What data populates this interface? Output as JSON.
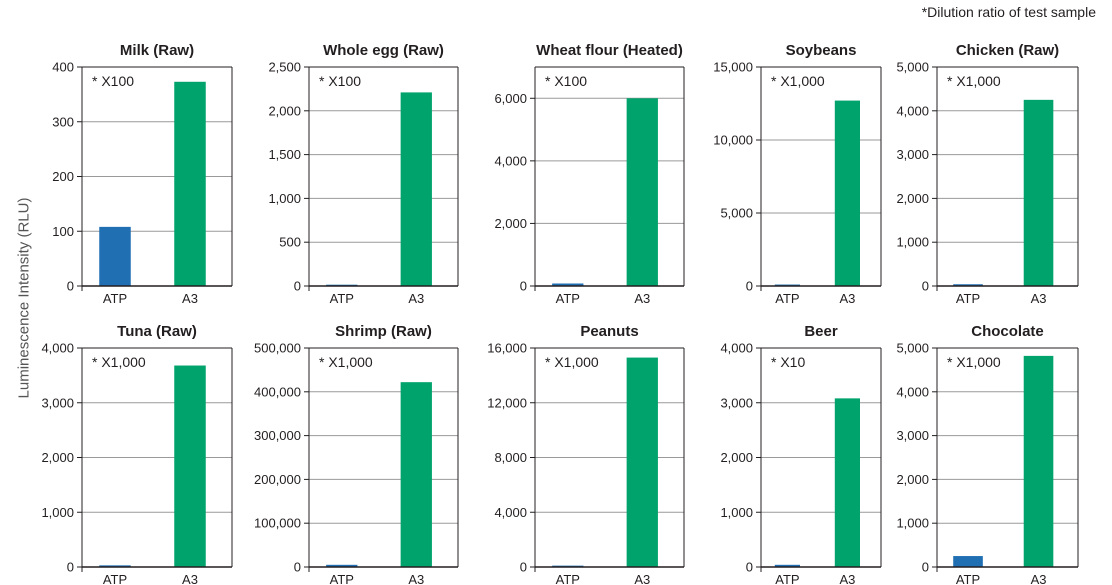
{
  "note": "*Dilution ratio of test sample",
  "ylabel": "Luminescence Intensity (RLU)",
  "colors": {
    "ATP": "#1f6fb2",
    "A3": "#00a36c",
    "grid": "#9a9a9a",
    "frame": "#231f20"
  },
  "chart_data": [
    {
      "type": "bar",
      "title": "Milk (Raw)",
      "dilution": "* X100",
      "categories": [
        "ATP",
        "A3"
      ],
      "values": [
        108,
        373
      ],
      "ylim": [
        0,
        400
      ],
      "yticks": [
        0,
        100,
        200,
        300,
        400
      ],
      "tick_labels": [
        "0",
        "100",
        "200",
        "300",
        "400"
      ]
    },
    {
      "type": "bar",
      "title": "Whole egg (Raw)",
      "dilution": "* X100",
      "categories": [
        "ATP",
        "A3"
      ],
      "values": [
        15,
        2210
      ],
      "ylim": [
        0,
        2500
      ],
      "yticks": [
        0,
        500,
        1000,
        1500,
        2000,
        2500
      ],
      "tick_labels": [
        "0",
        "500",
        "1,000",
        "1,500",
        "2,000",
        "2,500"
      ]
    },
    {
      "type": "bar",
      "title": "Wheat flour (Heated)",
      "dilution": "* X100",
      "categories": [
        "ATP",
        "A3"
      ],
      "values": [
        80,
        6000
      ],
      "ylim": [
        0,
        7000
      ],
      "yticks": [
        0,
        2000,
        4000,
        6000
      ],
      "tick_labels": [
        "0",
        "2,000",
        "4,000",
        "6,000"
      ]
    },
    {
      "type": "bar",
      "title": "Soybeans",
      "dilution": "* X1,000",
      "categories": [
        "ATP",
        "A3"
      ],
      "values": [
        100,
        12700
      ],
      "ylim": [
        0,
        15000
      ],
      "yticks": [
        0,
        5000,
        10000,
        15000
      ],
      "tick_labels": [
        "0",
        "5,000",
        "10,000",
        "15,000"
      ]
    },
    {
      "type": "bar",
      "title": "Chicken (Raw)",
      "dilution": "* X1,000",
      "categories": [
        "ATP",
        "A3"
      ],
      "values": [
        40,
        4250
      ],
      "ylim": [
        0,
        5000
      ],
      "yticks": [
        0,
        1000,
        2000,
        3000,
        4000,
        5000
      ],
      "tick_labels": [
        "0",
        "1,000",
        "2,000",
        "3,000",
        "4,000",
        "5,000"
      ]
    },
    {
      "type": "bar",
      "title": "Tuna (Raw)",
      "dilution": "* X1,000",
      "categories": [
        "ATP",
        "A3"
      ],
      "values": [
        30,
        3680
      ],
      "ylim": [
        0,
        4000
      ],
      "yticks": [
        0,
        1000,
        2000,
        3000,
        4000
      ],
      "tick_labels": [
        "0",
        "1,000",
        "2,000",
        "3,000",
        "4,000"
      ]
    },
    {
      "type": "bar",
      "title": "Shrimp (Raw)",
      "dilution": "* X1,000",
      "categories": [
        "ATP",
        "A3"
      ],
      "values": [
        5000,
        422000
      ],
      "ylim": [
        0,
        500000
      ],
      "yticks": [
        0,
        100000,
        200000,
        300000,
        400000,
        500000
      ],
      "tick_labels": [
        "0",
        "100,000",
        "200,000",
        "300,000",
        "400,000",
        "500,000"
      ]
    },
    {
      "type": "bar",
      "title": "Peanuts",
      "dilution": "* X1,000",
      "categories": [
        "ATP",
        "A3"
      ],
      "values": [
        100,
        15300
      ],
      "ylim": [
        0,
        16000
      ],
      "yticks": [
        0,
        4000,
        8000,
        12000,
        16000
      ],
      "tick_labels": [
        "0",
        "4,000",
        "8,000",
        "12,000",
        "16,000"
      ]
    },
    {
      "type": "bar",
      "title": "Beer",
      "dilution": "* X10",
      "categories": [
        "ATP",
        "A3"
      ],
      "values": [
        40,
        3080
      ],
      "ylim": [
        0,
        4000
      ],
      "yticks": [
        0,
        1000,
        2000,
        3000,
        4000
      ],
      "tick_labels": [
        "0",
        "1,000",
        "2,000",
        "3,000",
        "4,000"
      ]
    },
    {
      "type": "bar",
      "title": "Chocolate",
      "dilution": "* X1,000",
      "categories": [
        "ATP",
        "A3"
      ],
      "values": [
        250,
        4820
      ],
      "ylim": [
        0,
        5000
      ],
      "yticks": [
        0,
        1000,
        2000,
        3000,
        4000,
        5000
      ],
      "tick_labels": [
        "0",
        "1,000",
        "2,000",
        "3,000",
        "4,000",
        "5,000"
      ]
    }
  ]
}
